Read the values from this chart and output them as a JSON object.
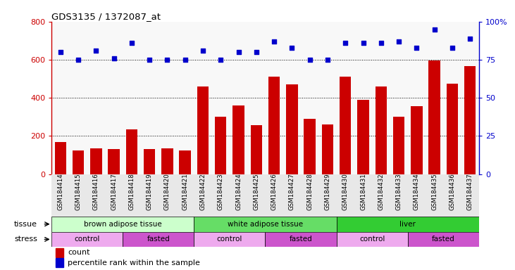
{
  "title": "GDS3135 / 1372087_at",
  "samples": [
    "GSM184414",
    "GSM184415",
    "GSM184416",
    "GSM184417",
    "GSM184418",
    "GSM184419",
    "GSM184420",
    "GSM184421",
    "GSM184422",
    "GSM184423",
    "GSM184424",
    "GSM184425",
    "GSM184426",
    "GSM184427",
    "GSM184428",
    "GSM184429",
    "GSM184430",
    "GSM184431",
    "GSM184432",
    "GSM184433",
    "GSM184434",
    "GSM184435",
    "GSM184436",
    "GSM184437"
  ],
  "counts": [
    170,
    125,
    135,
    130,
    235,
    130,
    135,
    125,
    460,
    300,
    360,
    255,
    510,
    470,
    290,
    260,
    510,
    390,
    460,
    300,
    355,
    595,
    475,
    565
  ],
  "percentiles": [
    80,
    75,
    81,
    76,
    86,
    75,
    75,
    75,
    81,
    75,
    80,
    80,
    87,
    83,
    75,
    75,
    86,
    86,
    86,
    87,
    83,
    95,
    83,
    89
  ],
  "bar_color": "#cc0000",
  "dot_color": "#0000cc",
  "ylim_left": [
    0,
    800
  ],
  "ylim_right": [
    0,
    100
  ],
  "yticks_left": [
    0,
    200,
    400,
    600,
    800
  ],
  "yticks_right": [
    0,
    25,
    50,
    75,
    100
  ],
  "tissue_groups": [
    {
      "label": "brown adipose tissue",
      "start": 0,
      "end": 8,
      "color": "#ccffcc"
    },
    {
      "label": "white adipose tissue",
      "start": 8,
      "end": 16,
      "color": "#66dd66"
    },
    {
      "label": "liver",
      "start": 16,
      "end": 24,
      "color": "#33cc33"
    }
  ],
  "stress_groups": [
    {
      "label": "control",
      "start": 0,
      "end": 4,
      "color": "#eeaaee"
    },
    {
      "label": "fasted",
      "start": 4,
      "end": 8,
      "color": "#cc55cc"
    },
    {
      "label": "control",
      "start": 8,
      "end": 12,
      "color": "#eeaaee"
    },
    {
      "label": "fasted",
      "start": 12,
      "end": 16,
      "color": "#cc55cc"
    },
    {
      "label": "control",
      "start": 16,
      "end": 20,
      "color": "#eeaaee"
    },
    {
      "label": "fasted",
      "start": 20,
      "end": 24,
      "color": "#cc55cc"
    }
  ],
  "legend_count_label": "count",
  "legend_pct_label": "percentile rank within the sample",
  "tissue_label": "tissue",
  "stress_label": "stress",
  "plot_bg": "#ffffff",
  "right_axis_top_label": "100%",
  "right_ytick_labels": [
    "0",
    "25",
    "50",
    "75",
    "100%"
  ]
}
